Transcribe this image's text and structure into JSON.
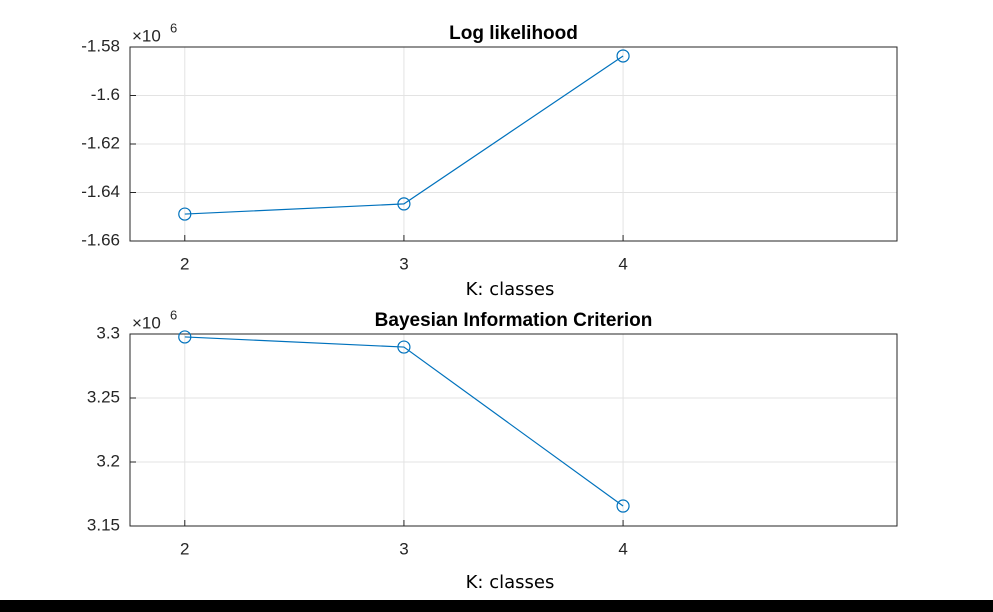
{
  "chart_data": [
    {
      "type": "line",
      "title": "Log likelihood",
      "xlabel": "K: classes",
      "y_multiplier": "×10",
      "y_multiplier_exponent": "6",
      "x": [
        2,
        3,
        4
      ],
      "xlim": [
        1.75,
        5.25
      ],
      "xticks": [
        2,
        3,
        4
      ],
      "ylim": [
        -1.66,
        -1.58
      ],
      "yticks": [
        -1.66,
        -1.64,
        -1.62,
        -1.6,
        -1.58
      ],
      "grid": true,
      "marker": "circle",
      "series": [
        {
          "color": "#0072bd",
          "values": [
            -1.6489,
            -1.6447,
            -1.5837
          ]
        }
      ]
    },
    {
      "type": "line",
      "title": "Bayesian Information Criterion",
      "xlabel": "K: classes",
      "y_multiplier": "×10",
      "y_multiplier_exponent": "6",
      "x": [
        2,
        3,
        4
      ],
      "xlim": [
        1.75,
        5.25
      ],
      "xticks": [
        2,
        3,
        4
      ],
      "ylim": [
        3.15,
        3.3
      ],
      "yticks": [
        3.15,
        3.2,
        3.25,
        3.3
      ],
      "grid": true,
      "marker": "circle",
      "series": [
        {
          "color": "#0072bd",
          "values": [
            3.2977,
            3.2898,
            3.1656
          ]
        }
      ]
    }
  ]
}
